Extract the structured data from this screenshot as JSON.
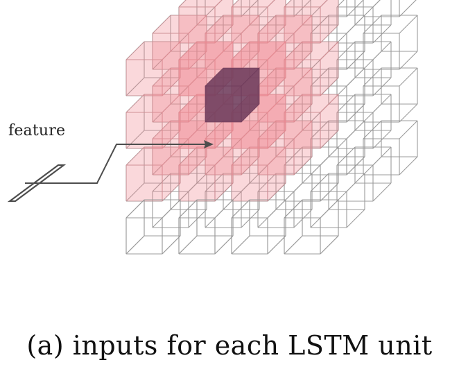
{
  "feature_label": "feature",
  "caption": "(a) inputs for each LSTM unit",
  "colors": {
    "wire_stroke": "#9b9b9b",
    "input_fill": "#f08a92",
    "center_fill": "#6e3b5b",
    "arrow": "#4d4d4d",
    "text": "#111111"
  }
}
